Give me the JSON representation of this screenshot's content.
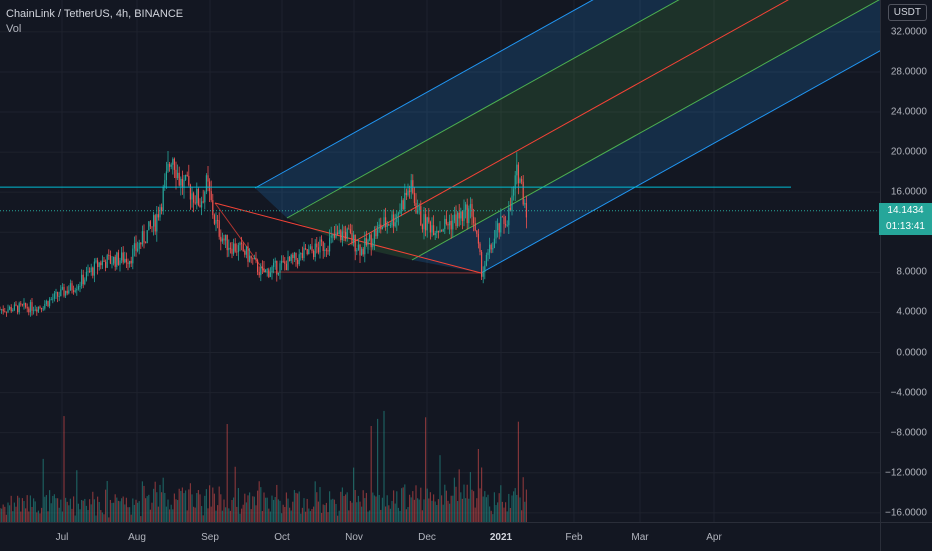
{
  "header": {
    "symbol": "ChainLink / TetherUS, 4h, BINANCE",
    "volume_label": "Vol"
  },
  "price_axis": {
    "currency": "USDT",
    "ticks": [
      "32.0000",
      "28.0000",
      "24.0000",
      "20.0000",
      "16.0000",
      "12.0000",
      "8.0000",
      "4.0000",
      "0.0000",
      "−4.0000",
      "−8.0000",
      "−12.0000",
      "−16.0000"
    ],
    "tick_values": [
      32,
      28,
      24,
      20,
      16,
      12,
      8,
      4,
      0,
      -4,
      -8,
      -12,
      -16
    ]
  },
  "time_axis": {
    "labels": [
      "Jul",
      "Aug",
      "Sep",
      "Oct",
      "Nov",
      "Dec",
      "2021",
      "Feb",
      "Mar",
      "Apr"
    ],
    "year_label": "2021"
  },
  "last_price": {
    "price": "14.1434",
    "value": 14.1434,
    "countdown": "01:13:41",
    "color": "#26a69a"
  },
  "colors": {
    "background": "#131722",
    "up": "#26a69a",
    "down": "#ef5350",
    "horizontal_line": "#00bcd4",
    "pitchfork_outer": "#2196f3",
    "pitchfork_inner": "#4caf50",
    "pitchfork_median": "#f44336"
  },
  "chart_data": {
    "type": "candlestick",
    "y_range": [
      -16,
      34
    ],
    "key_prices": {
      "early_july": 4.3,
      "aug_peak": 20.1,
      "sep_high": 16.8,
      "sep_low": 7.9,
      "nov_high": 16.5,
      "dec_low": 8.0,
      "jan_high": 18.3,
      "last": 14.1434
    },
    "horizontal_line_price": 16.5,
    "pitchfork": {
      "anchors": [
        "early Sep 15.1",
        "late Sep 8.1",
        "late Dec 8.0"
      ]
    }
  }
}
